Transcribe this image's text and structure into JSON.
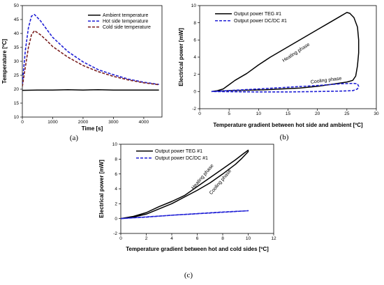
{
  "chart_data": [
    {
      "type": "line",
      "panel": "(a)",
      "xlabel": "Time [s]",
      "ylabel": "Temperature [ºC]",
      "xlim": [
        0,
        4600
      ],
      "ylim": [
        10,
        50
      ],
      "xticks": [
        "0",
        "1000",
        "2000",
        "3000",
        "4000"
      ],
      "xtick_values": [
        0,
        1000,
        2000,
        3000,
        4000
      ],
      "yticks": [
        "10",
        "15",
        "20",
        "25",
        "30",
        "35",
        "40",
        "45",
        "50"
      ],
      "ytick_values": [
        10,
        15,
        20,
        25,
        30,
        35,
        40,
        45,
        50
      ],
      "legend_position": "top-right",
      "series": [
        {
          "name": "Ambient temperature",
          "color": "#000000",
          "style": "solid",
          "x": [
            0,
            500,
            1000,
            1500,
            2000,
            2500,
            3000,
            3500,
            4000,
            4500
          ],
          "y": [
            19.6,
            19.7,
            19.7,
            19.8,
            19.7,
            19.8,
            19.7,
            19.7,
            19.7,
            19.7
          ]
        },
        {
          "name": "Hot side temperature",
          "color": "#1f1fd6",
          "style": "dashed",
          "x": [
            0,
            100,
            200,
            300,
            400,
            600,
            800,
            1000,
            1500,
            2000,
            2500,
            3000,
            3500,
            4000,
            4500
          ],
          "y": [
            22,
            34,
            42,
            46.2,
            46.8,
            44.5,
            41.5,
            38.6,
            33.5,
            29.8,
            27,
            25.2,
            23.6,
            22.5,
            21.7
          ]
        },
        {
          "name": "Cold side temperature",
          "color": "#7a1f1f",
          "style": "dashed",
          "x": [
            0,
            100,
            200,
            300,
            400,
            600,
            800,
            1000,
            1500,
            2000,
            2500,
            3000,
            3500,
            4000,
            4500
          ],
          "y": [
            21,
            28,
            35,
            39.5,
            41,
            39.5,
            37.5,
            35.3,
            31.5,
            28.5,
            26.3,
            24.6,
            23.3,
            22.3,
            21.6
          ]
        }
      ]
    },
    {
      "type": "line",
      "panel": "(b)",
      "xlabel": "Temperature gradient between hot side and ambient [ºC]",
      "ylabel": "Electrical power [mW]",
      "xlim": [
        0,
        30
      ],
      "ylim": [
        -2,
        10
      ],
      "xticks": [
        "0",
        "5",
        "10",
        "15",
        "20",
        "25",
        "30"
      ],
      "xtick_values": [
        0,
        5,
        10,
        15,
        20,
        25,
        30
      ],
      "yticks": [
        "-2",
        "0",
        "2",
        "4",
        "6",
        "8",
        "10"
      ],
      "ytick_values": [
        -2,
        0,
        2,
        4,
        6,
        8,
        10
      ],
      "legend_position": "top-left",
      "annotations": [
        {
          "text": "Heating phase",
          "x": 16.5,
          "y": 4.4,
          "rotate": -33
        },
        {
          "text": "Cooling phase",
          "x": 21.5,
          "y": 1.15,
          "rotate": -7
        }
      ],
      "series": [
        {
          "name": "Output power TEG #1",
          "color": "#000000",
          "style": "solid",
          "x": [
            2,
            3,
            4,
            5,
            6,
            8,
            10,
            12,
            14,
            16,
            18,
            20,
            22,
            24,
            25,
            25.5,
            26.2,
            26.8,
            27,
            27,
            26.8,
            26.5,
            26,
            25,
            23,
            20,
            17,
            14,
            11,
            8,
            5,
            3,
            2
          ],
          "y": [
            0,
            0.1,
            0.3,
            0.8,
            1.3,
            2.1,
            3.1,
            4.0,
            4.8,
            5.6,
            6.4,
            7.2,
            8.0,
            8.8,
            9.2,
            9.1,
            8.6,
            7.5,
            6.0,
            4.5,
            3.0,
            1.8,
            1.3,
            1.1,
            0.9,
            0.6,
            0.4,
            0.3,
            0.2,
            0.15,
            0.1,
            0.05,
            0
          ]
        },
        {
          "name": "Output power DC/DC #1",
          "color": "#1f1fd6",
          "style": "dashed",
          "x": [
            2,
            6,
            10,
            15,
            20,
            24,
            26,
            26.8,
            27,
            26.8,
            26,
            24,
            20,
            15,
            10,
            6,
            2
          ],
          "y": [
            0,
            0.15,
            0.3,
            0.5,
            0.7,
            0.9,
            0.95,
            0.9,
            0.6,
            0.3,
            0.1,
            0.05,
            0,
            -0.05,
            -0.05,
            -0.03,
            0
          ]
        }
      ]
    },
    {
      "type": "line",
      "panel": "(c)",
      "xlabel": "Temperature gradient between hot and cold sides [ºC]",
      "ylabel": "Electrical power [mW]",
      "xlim": [
        0,
        12
      ],
      "ylim": [
        -2,
        10
      ],
      "xticks": [
        "0",
        "2",
        "4",
        "6",
        "8",
        "10",
        "12"
      ],
      "xtick_values": [
        0,
        2,
        4,
        6,
        8,
        10,
        12
      ],
      "yticks": [
        "-2",
        "0",
        "2",
        "4",
        "6",
        "8",
        "10"
      ],
      "ytick_values": [
        -2,
        0,
        2,
        4,
        6,
        8,
        10
      ],
      "legend_position": "top-left",
      "annotations": [
        {
          "text": "Heating phase",
          "x": 6.5,
          "y": 5.5,
          "rotate": -50
        },
        {
          "text": "Cooling phase",
          "x": 7.9,
          "y": 4.8,
          "rotate": -50
        }
      ],
      "series": [
        {
          "name": "Output power TEG #1",
          "color": "#000000",
          "style": "solid",
          "x": [
            0,
            1,
            2,
            3,
            4,
            5,
            6,
            7,
            8,
            9,
            9.6,
            10,
            10,
            9.5,
            9,
            8,
            7,
            6,
            5,
            4,
            3,
            2,
            1,
            0
          ],
          "y": [
            0,
            0.3,
            0.8,
            1.6,
            2.3,
            3.1,
            4.3,
            5.5,
            6.7,
            7.9,
            8.7,
            9.2,
            9.0,
            8.1,
            7.3,
            6.0,
            4.8,
            3.8,
            2.9,
            2.0,
            1.3,
            0.6,
            0.2,
            0
          ]
        },
        {
          "name": "Output power DC/DC #1",
          "color": "#1f1fd6",
          "style": "dashed",
          "x": [
            0,
            2,
            4,
            6,
            8,
            10,
            8,
            6,
            4,
            2,
            0
          ],
          "y": [
            0,
            0.2,
            0.45,
            0.65,
            0.85,
            1.05,
            0.88,
            0.67,
            0.45,
            0.22,
            0
          ]
        }
      ]
    }
  ]
}
